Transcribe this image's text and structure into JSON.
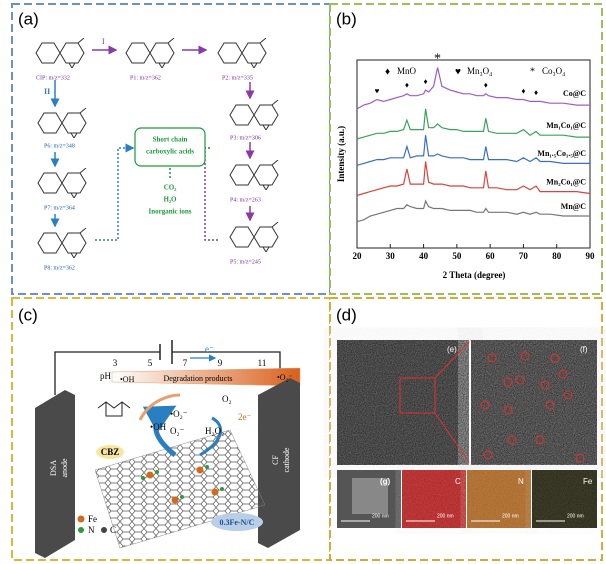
{
  "panel_labels": [
    "(a)",
    "(b)",
    "(c)",
    "(d)"
  ],
  "panel_a": {
    "compounds": [
      "CIP: m/z=332",
      "P1: m/z=362",
      "P2: m/z=335",
      "P3: m/z=306",
      "P4: m/z=263",
      "P5: m/z=245",
      "P6: m/z=348",
      "P7: m/z=364",
      "P8: m/z=362"
    ],
    "pathways": [
      "I",
      "II"
    ],
    "box": [
      "Short chain",
      "carboxylic acids"
    ],
    "products": [
      "CO₂",
      "H₂O",
      "Inorganic ions"
    ]
  },
  "chart_data": {
    "type": "line",
    "x_label": "2 Theta (degree)",
    "y_label": "Intensity (a.u.)",
    "x": [
      20,
      22,
      24,
      26,
      28,
      30,
      32,
      34,
      35,
      36,
      38,
      40,
      40.6,
      41.5,
      43,
      44.2,
      45.5,
      48,
      50,
      52,
      54,
      56,
      58,
      58.7,
      59.5,
      62,
      65,
      68,
      70,
      72,
      73.8,
      75,
      78,
      82,
      86,
      90
    ],
    "xlim": [
      20,
      90
    ],
    "xticks": [
      20,
      30,
      40,
      50,
      60,
      70,
      80,
      90
    ],
    "ylim": [
      0,
      100
    ],
    "legend": [
      {
        "symbol": "♦",
        "name": "MnO"
      },
      {
        "symbol": "♥",
        "name": "Mn₃O₄"
      },
      {
        "symbol": "*",
        "name": "Co₃O₄"
      }
    ],
    "peak_markers": [
      {
        "symbol": "♥",
        "x": 26
      },
      {
        "symbol": "♦",
        "x": 35
      },
      {
        "symbol": "♦",
        "x": 40.6
      },
      {
        "symbol": "*",
        "x": 44.2
      },
      {
        "symbol": "♦",
        "x": 58.7
      },
      {
        "symbol": "♦",
        "x": 70
      },
      {
        "symbol": "♦",
        "x": 73.8
      }
    ],
    "series": [
      {
        "name": "Co@C",
        "color": "#a15bc9",
        "values": [
          74,
          76,
          77,
          79,
          78,
          79,
          80,
          81,
          82,
          81,
          81,
          82,
          84,
          83,
          86,
          96,
          86,
          84,
          83,
          82,
          82,
          81,
          81,
          82,
          81,
          80,
          80,
          79,
          79,
          78,
          78,
          78,
          77,
          77,
          76,
          76
        ]
      },
      {
        "name": "Mn₁Co₁@C",
        "color": "#3aa35a",
        "values": [
          58,
          59,
          60,
          61,
          61,
          62,
          62,
          63,
          68,
          63,
          63,
          63,
          74,
          64,
          64,
          66,
          64,
          63,
          63,
          62,
          62,
          62,
          62,
          69,
          62,
          61,
          61,
          61,
          63,
          60,
          62,
          60,
          60,
          60,
          59,
          59
        ]
      },
      {
        "name": "Mn₁.₅Co₁.₅@C",
        "color": "#3b6fc2",
        "values": [
          44,
          45,
          46,
          47,
          47,
          48,
          48,
          48,
          54,
          48,
          49,
          49,
          60,
          49,
          49,
          50,
          49,
          48,
          48,
          48,
          47,
          47,
          47,
          54,
          47,
          47,
          47,
          46,
          48,
          46,
          48,
          46,
          46,
          45,
          45,
          45
        ]
      },
      {
        "name": "Mn₂Co₁@C",
        "color": "#d9423f",
        "values": [
          28,
          29,
          30,
          31,
          32,
          33,
          33,
          34,
          42,
          34,
          34,
          34,
          46,
          35,
          34,
          34,
          34,
          33,
          33,
          33,
          32,
          32,
          32,
          41,
          32,
          32,
          31,
          31,
          33,
          31,
          33,
          30,
          30,
          30,
          30,
          29
        ]
      },
      {
        "name": "Mn@C",
        "color": "#777777",
        "values": [
          14,
          15,
          17,
          18,
          19,
          20,
          21,
          21,
          23,
          22,
          21,
          21,
          25,
          22,
          21,
          21,
          21,
          20,
          20,
          20,
          20,
          19,
          19,
          21,
          19,
          19,
          19,
          18,
          19,
          18,
          19,
          18,
          18,
          17,
          17,
          17
        ]
      }
    ]
  },
  "panel_c": {
    "ph_label": "pH",
    "ph_ticks": [
      "3",
      "5",
      "7",
      "9",
      "11"
    ],
    "ph_left": "•OH",
    "ph_right": "•O₂⁻",
    "degradation": "Degradation products",
    "electron": "e⁻",
    "anode": [
      "DSA",
      "anode"
    ],
    "cathode": [
      "CF",
      "cathode"
    ],
    "molecule": "CBZ",
    "species": [
      "•O₂⁻",
      "•OH",
      "O₂⁻",
      "O₂",
      "2e⁻",
      "H₂O₂"
    ],
    "legend": [
      "Fe",
      "N",
      "C"
    ],
    "catalyst": "0.3Fe-N/C"
  },
  "panel_d": {
    "subpanels": [
      "(e)",
      "(f)",
      "(g)"
    ],
    "elements": [
      "C",
      "N",
      "Fe"
    ],
    "scale_bars": [
      "200 nm",
      "200 nm",
      "200 nm",
      "200 nm"
    ]
  }
}
